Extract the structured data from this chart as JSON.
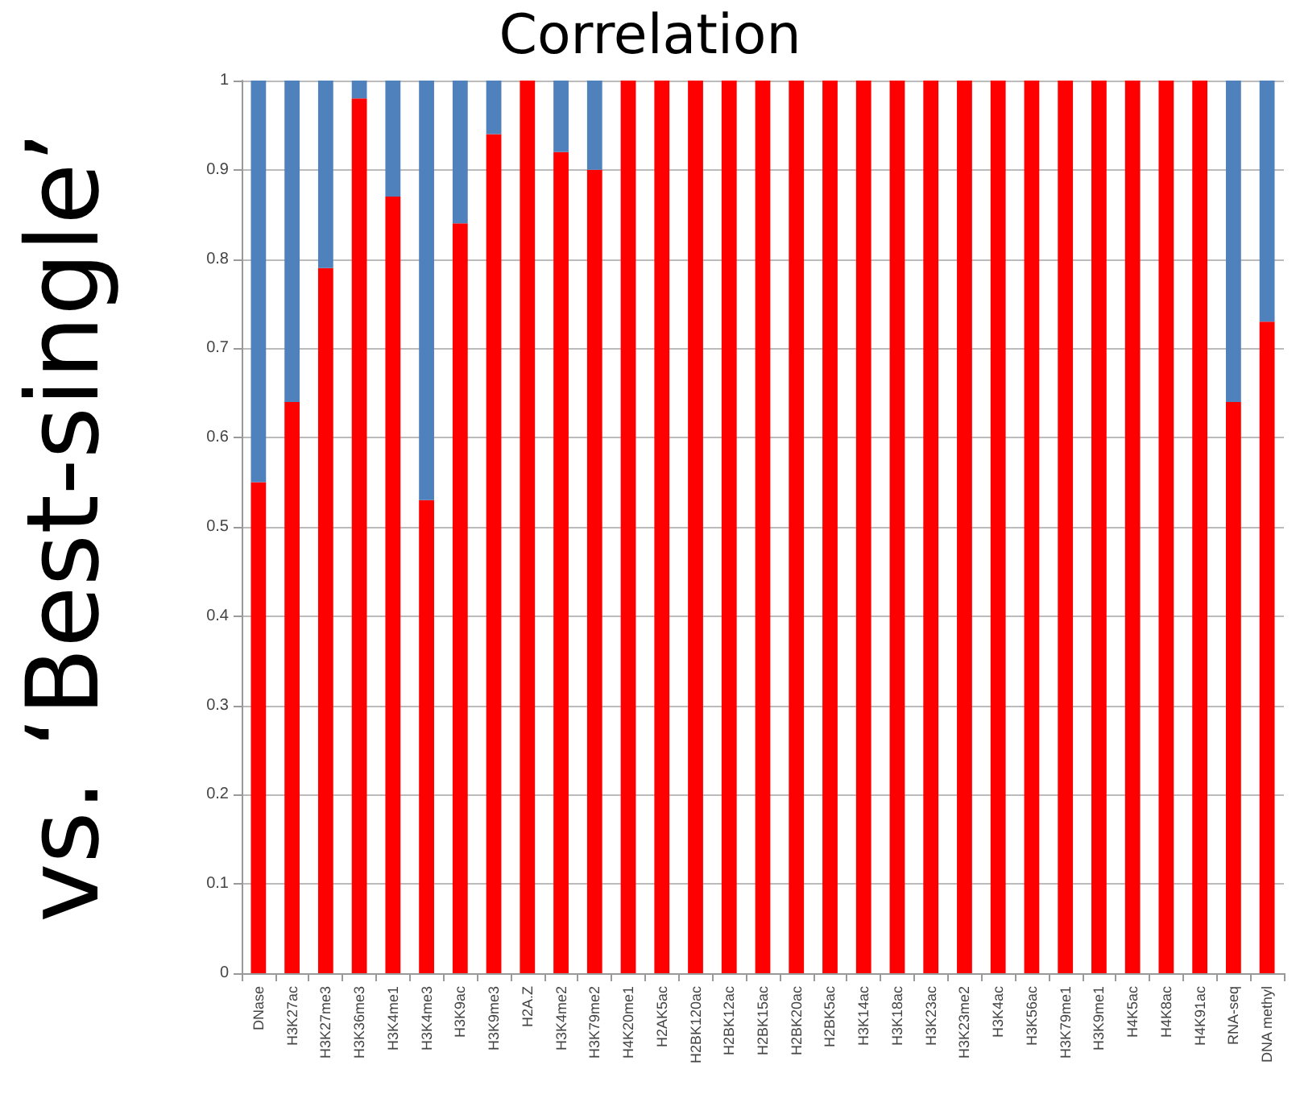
{
  "chart_data": {
    "type": "bar",
    "stacked": true,
    "title": "Correlation",
    "ylabel": "vs. ‘Best-single’",
    "categories": [
      "DNase",
      "H3K27ac",
      "H3K27me3",
      "H3K36me3",
      "H3K4me1",
      "H3K4me3",
      "H3K9ac",
      "H3K9me3",
      "H2A.Z",
      "H3K4me2",
      "H3K79me2",
      "H4K20me1",
      "H2AK5ac",
      "H2BK120ac",
      "H2BK12ac",
      "H2BK15ac",
      "H2BK20ac",
      "H2BK5ac",
      "H3K14ac",
      "H3K18ac",
      "H3K23ac",
      "H3K23me2",
      "H3K4ac",
      "H3K56ac",
      "H3K79me1",
      "H3K9me1",
      "H4K5ac",
      "H4K8ac",
      "H4K91ac",
      "RNA-seq",
      "DNA methyl"
    ],
    "series": [
      {
        "color": "#ff0000",
        "values": [
          0.55,
          0.64,
          0.79,
          0.98,
          0.87,
          0.53,
          0.84,
          0.94,
          1,
          0.92,
          0.9,
          1,
          1,
          1,
          1,
          1,
          1,
          1,
          1,
          1,
          1,
          1,
          1,
          1,
          1,
          1,
          1,
          1,
          1,
          0.64,
          0.73
        ]
      },
      {
        "color": "#4f81bd",
        "values": [
          0.45,
          0.36,
          0.21,
          0.02,
          0.13,
          0.47,
          0.16,
          0.06,
          0,
          0.08,
          0.1,
          0,
          0,
          0,
          0,
          0,
          0,
          0,
          0,
          0,
          0,
          0,
          0,
          0,
          0,
          0,
          0,
          0,
          0,
          0.36,
          0.27
        ]
      }
    ],
    "ylim": [
      0,
      1
    ],
    "yticks": [
      0,
      0.1,
      0.2,
      0.3,
      0.4,
      0.5,
      0.6,
      0.7,
      0.8,
      0.9,
      1
    ],
    "grid": "y"
  }
}
